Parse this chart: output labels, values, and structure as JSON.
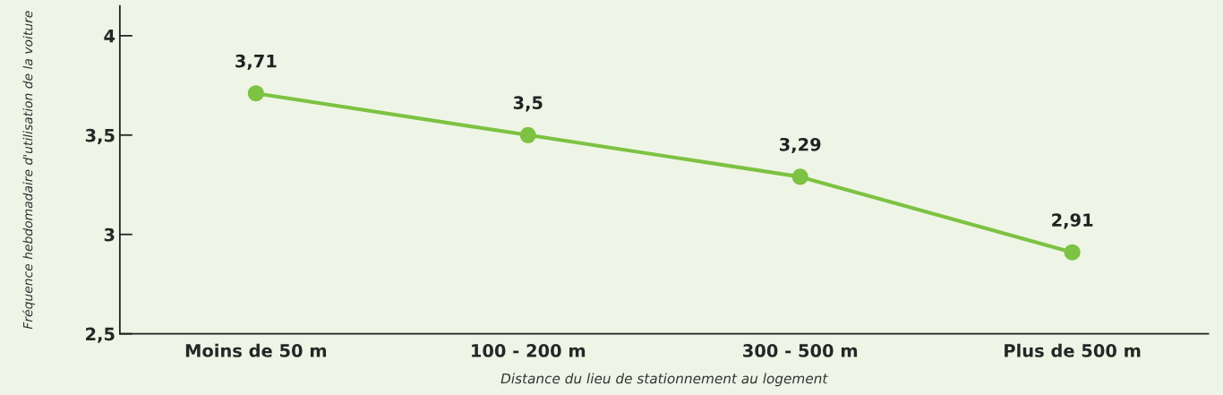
{
  "chart_data": {
    "type": "line",
    "xlabel": "Distance du lieu de stationnement au logement",
    "ylabel": "Fréquence hebdomadaire d'utilisation de la voiture",
    "categories": [
      "Moins de 50 m",
      "100 - 200 m",
      "300 - 500 m",
      "Plus de 500 m"
    ],
    "series": [
      {
        "color": "#7dc242",
        "values": [
          3.71,
          3.5,
          3.29,
          2.91
        ],
        "value_labels": [
          "3,71",
          "3,5",
          "3,29",
          "2,91"
        ]
      }
    ],
    "ylim": [
      2.5,
      4.15
    ],
    "yticks": [
      {
        "value": 2.5,
        "label": "2,5"
      },
      3,
      {
        "value": 3.5,
        "label": "3,5"
      },
      4
    ],
    "marker": "circle",
    "grid": false,
    "legend": false
  }
}
